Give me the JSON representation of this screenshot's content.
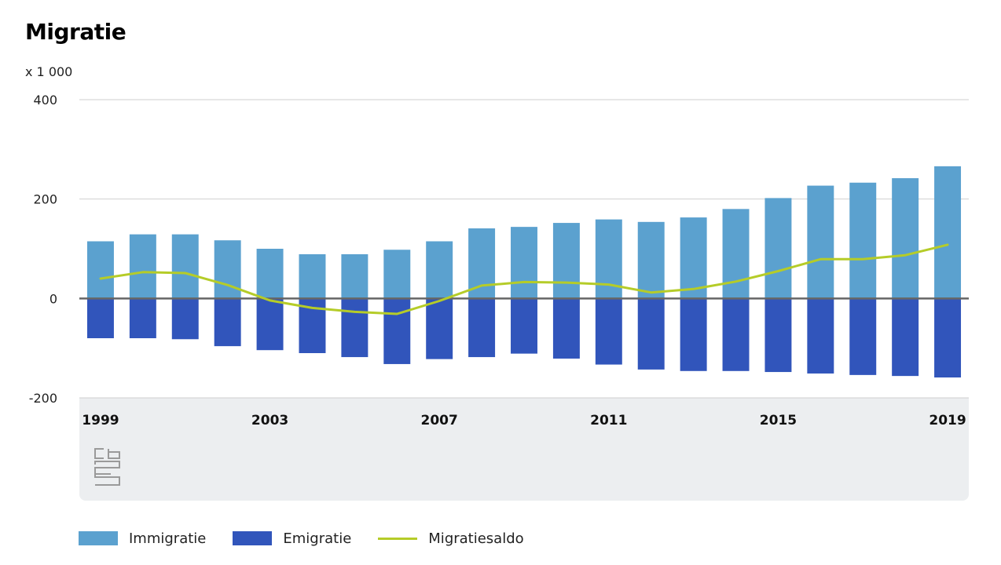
{
  "chart_data": {
    "type": "bar",
    "title": "Migratie",
    "unit_label": "x 1 000",
    "ylim": [
      -200,
      400
    ],
    "yticks": [
      {
        "value": 400,
        "label": "400"
      },
      {
        "value": 200,
        "label": "200"
      },
      {
        "value": 0,
        "label": "0"
      },
      {
        "value": -200,
        "label": "-200"
      }
    ],
    "categories": [
      1999,
      2000,
      2001,
      2002,
      2003,
      2004,
      2005,
      2006,
      2007,
      2008,
      2009,
      2010,
      2011,
      2012,
      2013,
      2014,
      2015,
      2016,
      2017,
      2018,
      2019
    ],
    "xtick_labels": [
      {
        "year": 1999,
        "label": "1999"
      },
      {
        "year": 2003,
        "label": "2003"
      },
      {
        "year": 2007,
        "label": "2007"
      },
      {
        "year": 2011,
        "label": "2011"
      },
      {
        "year": 2015,
        "label": "2015"
      },
      {
        "year": 2019,
        "label": "2019"
      }
    ],
    "series": [
      {
        "name": "Immigratie",
        "type": "bar",
        "color": "#5ba1cf",
        "values": [
          115,
          129,
          129,
          117,
          100,
          89,
          89,
          98,
          115,
          141,
          144,
          152,
          159,
          154,
          163,
          180,
          202,
          227,
          233,
          242,
          266
        ]
      },
      {
        "name": "Emigratie",
        "type": "bar",
        "color": "#3155bb",
        "values": [
          -80,
          -80,
          -82,
          -96,
          -104,
          -110,
          -118,
          -132,
          -122,
          -118,
          -111,
          -121,
          -133,
          -143,
          -146,
          -146,
          -148,
          -151,
          -154,
          -156,
          -159
        ]
      },
      {
        "name": "Migratiesaldo",
        "type": "line",
        "color": "#b5cc28",
        "values": [
          40,
          53,
          51,
          27,
          -4,
          -19,
          -27,
          -31,
          -5,
          26,
          33,
          32,
          28,
          12,
          19,
          34,
          55,
          79,
          79,
          87,
          108
        ]
      }
    ]
  },
  "legend": {
    "immigratie": "Immigratie",
    "emigratie": "Emigratie",
    "migratiesaldo": "Migratiesaldo"
  },
  "logo": {
    "icon": "cbs-logo-icon"
  }
}
